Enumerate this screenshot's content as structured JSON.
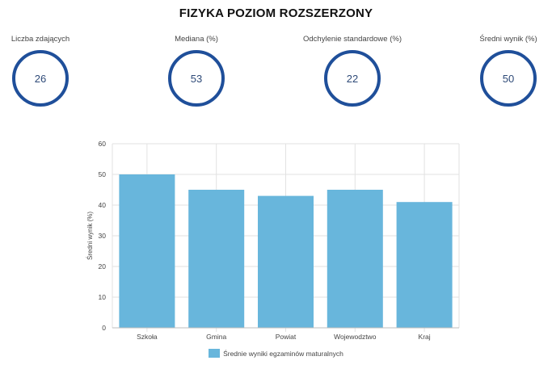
{
  "title": "FIZYKA POZIOM ROZSZERZONY",
  "stats": [
    {
      "label": "Liczba zdających",
      "value": "26"
    },
    {
      "label": "Mediana (%)",
      "value": "53"
    },
    {
      "label": "Odchylenie standardowe (%)",
      "value": "22"
    },
    {
      "label": "Średni wynik (%)",
      "value": "50"
    }
  ],
  "colors": {
    "bar": "#68b6dc",
    "circle": "#1f4f9a",
    "grid": "#e2e2e2"
  },
  "chart_data": {
    "type": "bar",
    "categories": [
      "Szkoła",
      "Gmina",
      "Powiat",
      "Wojewodztwo",
      "Kraj"
    ],
    "series": [
      {
        "name": "Średnie wyniki egzaminów maturalnych",
        "values": [
          50,
          45,
          43,
          45,
          41
        ]
      }
    ],
    "xlabel": "",
    "ylabel": "Średni wynik (%)",
    "ylim": [
      0,
      60
    ],
    "yticks": [
      0,
      10,
      20,
      30,
      40,
      50,
      60
    ],
    "grid": true,
    "legend": "bottom"
  }
}
